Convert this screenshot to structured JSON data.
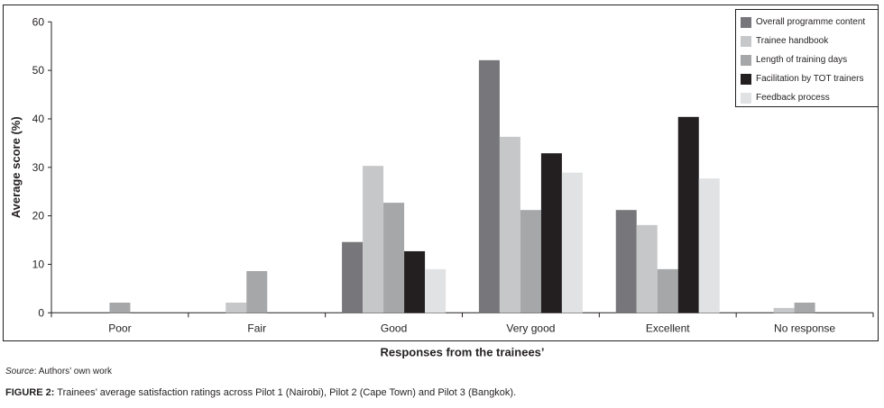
{
  "chart_data": {
    "type": "bar",
    "title": "",
    "xlabel": "Responses from the trainees’",
    "ylabel": "Average score (%)",
    "ylim": [
      0,
      60
    ],
    "yticks": [
      0,
      10,
      20,
      30,
      40,
      50,
      60
    ],
    "grid": false,
    "legend_position": "top-right",
    "categories": [
      "Poor",
      "Fair",
      "Good",
      "Very good",
      "Excellent",
      "No response"
    ],
    "series": [
      {
        "name": "Overall programme content",
        "color": "#77777b",
        "values": [
          0,
          0,
          14.6,
          52.1,
          21.2,
          0
        ]
      },
      {
        "name": "Trainee handbook",
        "color": "#c6c7c9",
        "values": [
          0,
          2.1,
          30.3,
          36.3,
          18.1,
          1.0
        ]
      },
      {
        "name": "Length of training days",
        "color": "#a6a7a9",
        "values": [
          2.1,
          8.6,
          22.7,
          21.2,
          9.0,
          2.1
        ]
      },
      {
        "name": "Facilitation by TOT trainers",
        "color": "#231f20",
        "values": [
          0,
          0,
          12.7,
          32.9,
          40.4,
          0
        ]
      },
      {
        "name": "Feedback process",
        "color": "#e1e2e3",
        "values": [
          0,
          0,
          9.0,
          28.9,
          27.7,
          0
        ]
      }
    ]
  },
  "source": {
    "label": "Source",
    "text": ": Authors’ own work"
  },
  "caption": {
    "label": "FIGURE 2:",
    "text": " Trainees’ average satisfaction ratings across Pilot 1 (Nairobi), Pilot 2 (Cape Town) and Pilot 3 (Bangkok)."
  }
}
